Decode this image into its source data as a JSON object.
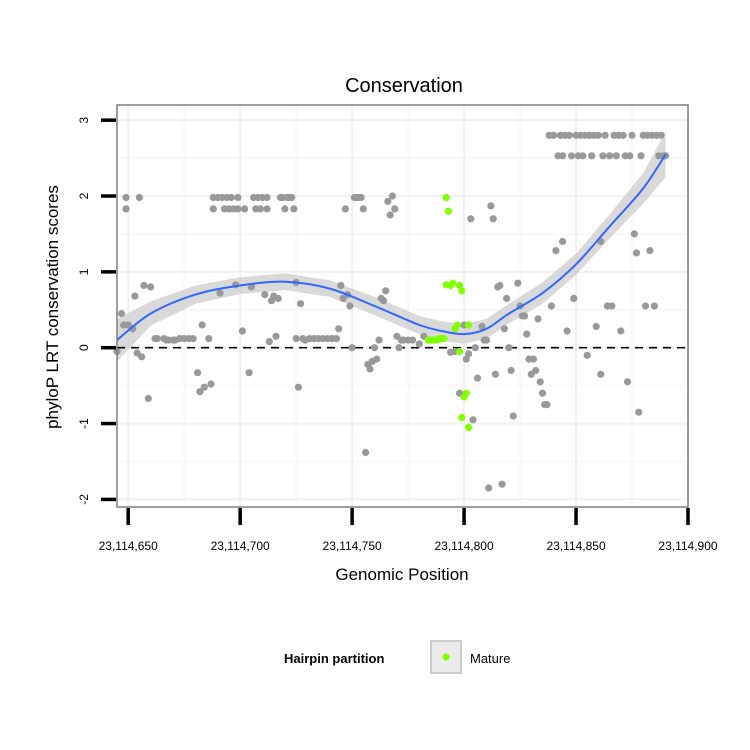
{
  "chart_data": {
    "type": "scatter",
    "title": "Conservation",
    "xlabel": "Genomic Position",
    "ylabel": "phyloP LRT conservation scores",
    "xlim": [
      23114645,
      23114900
    ],
    "ylim": [
      -2.1,
      3.2
    ],
    "x_ticks": [
      {
        "value": 23114650,
        "label": "23,114,650"
      },
      {
        "value": 23114700,
        "label": "23,114,700"
      },
      {
        "value": 23114750,
        "label": "23,114,750"
      },
      {
        "value": 23114800,
        "label": "23,114,800"
      },
      {
        "value": 23114850,
        "label": "23,114,850"
      },
      {
        "value": 23114900,
        "label": "23,114,900"
      }
    ],
    "y_ticks": [
      {
        "value": -2,
        "label": "-2"
      },
      {
        "value": -1,
        "label": "-1"
      },
      {
        "value": 0,
        "label": "0"
      },
      {
        "value": 1,
        "label": "1"
      },
      {
        "value": 2,
        "label": "2"
      },
      {
        "value": 3,
        "label": "3"
      }
    ],
    "reference_line": {
      "y": 0,
      "style": "dashed"
    },
    "legend": {
      "title": "Hairpin partition",
      "position": "bottom",
      "entries": [
        {
          "label": "Mature",
          "color": "#7fff00"
        }
      ]
    },
    "colors": {
      "other": "#999999",
      "mature": "#7fff00",
      "smooth": "#3366ff",
      "ribbon": "#cccccc",
      "panel_border": "#7f7f7f"
    },
    "series": [
      {
        "name": "Other",
        "points": [
          [
            23114645,
            -0.05
          ],
          [
            23114647,
            0.45
          ],
          [
            23114648,
            0.3
          ],
          [
            23114649,
            1.83
          ],
          [
            23114649,
            1.98
          ],
          [
            23114650,
            0.3
          ],
          [
            23114652,
            0.25
          ],
          [
            23114653,
            0.68
          ],
          [
            23114654,
            -0.07
          ],
          [
            23114655,
            1.98
          ],
          [
            23114656,
            -0.12
          ],
          [
            23114657,
            0.82
          ],
          [
            23114659,
            -0.67
          ],
          [
            23114660,
            0.8
          ],
          [
            23114662,
            0.12
          ],
          [
            23114663,
            0.12
          ],
          [
            23114666,
            0.12
          ],
          [
            23114667,
            0.1
          ],
          [
            23114668,
            0.1
          ],
          [
            23114670,
            0.1
          ],
          [
            23114671,
            0.1
          ],
          [
            23114673,
            0.12
          ],
          [
            23114675,
            0.12
          ],
          [
            23114677,
            0.12
          ],
          [
            23114679,
            0.12
          ],
          [
            23114681,
            -0.33
          ],
          [
            23114682,
            -0.58
          ],
          [
            23114683,
            0.3
          ],
          [
            23114684,
            -0.52
          ],
          [
            23114686,
            0.12
          ],
          [
            23114687,
            -0.48
          ],
          [
            23114688,
            1.98
          ],
          [
            23114688,
            1.83
          ],
          [
            23114690,
            1.98
          ],
          [
            23114691,
            0.72
          ],
          [
            23114692,
            1.98
          ],
          [
            23114693,
            1.83
          ],
          [
            23114694,
            1.98
          ],
          [
            23114695,
            1.83
          ],
          [
            23114696,
            1.98
          ],
          [
            23114697,
            1.83
          ],
          [
            23114698,
            0.83
          ],
          [
            23114699,
            1.98
          ],
          [
            23114699,
            1.83
          ],
          [
            23114701,
            0.22
          ],
          [
            23114702,
            1.83
          ],
          [
            23114704,
            -0.33
          ],
          [
            23114705,
            0.8
          ],
          [
            23114706,
            1.98
          ],
          [
            23114707,
            1.83
          ],
          [
            23114708,
            1.98
          ],
          [
            23114709,
            1.83
          ],
          [
            23114710,
            1.98
          ],
          [
            23114711,
            0.7
          ],
          [
            23114712,
            1.98
          ],
          [
            23114712,
            1.83
          ],
          [
            23114713,
            0.08
          ],
          [
            23114714,
            0.62
          ],
          [
            23114715,
            0.68
          ],
          [
            23114716,
            0.15
          ],
          [
            23114717,
            0.65
          ],
          [
            23114718,
            1.98
          ],
          [
            23114719,
            1.98
          ],
          [
            23114720,
            1.83
          ],
          [
            23114721,
            1.98
          ],
          [
            23114722,
            1.98
          ],
          [
            23114723,
            1.98
          ],
          [
            23114724,
            1.83
          ],
          [
            23114725,
            0.12
          ],
          [
            23114725,
            0.86
          ],
          [
            23114726,
            -0.52
          ],
          [
            23114727,
            0.58
          ],
          [
            23114728,
            0.12
          ],
          [
            23114729,
            0.1
          ],
          [
            23114731,
            0.12
          ],
          [
            23114733,
            0.12
          ],
          [
            23114735,
            0.12
          ],
          [
            23114737,
            0.12
          ],
          [
            23114739,
            0.12
          ],
          [
            23114741,
            0.12
          ],
          [
            23114743,
            0.12
          ],
          [
            23114744,
            0.25
          ],
          [
            23114745,
            0.82
          ],
          [
            23114746,
            0.65
          ],
          [
            23114747,
            1.83
          ],
          [
            23114748,
            0.7
          ],
          [
            23114749,
            0.55
          ],
          [
            23114750,
            0.0
          ],
          [
            23114751,
            1.98
          ],
          [
            23114752,
            1.98
          ],
          [
            23114753,
            1.98
          ],
          [
            23114754,
            1.98
          ],
          [
            23114755,
            1.83
          ],
          [
            23114756,
            -1.38
          ],
          [
            23114757,
            -0.22
          ],
          [
            23114758,
            -0.28
          ],
          [
            23114759,
            -0.18
          ],
          [
            23114760,
            0.0
          ],
          [
            23114761,
            -0.15
          ],
          [
            23114762,
            0.1
          ],
          [
            23114763,
            0.65
          ],
          [
            23114764,
            0.62
          ],
          [
            23114765,
            0.75
          ],
          [
            23114766,
            1.93
          ],
          [
            23114767,
            1.75
          ],
          [
            23114768,
            2.0
          ],
          [
            23114769,
            1.83
          ],
          [
            23114770,
            0.15
          ],
          [
            23114771,
            0.0
          ],
          [
            23114772,
            0.1
          ],
          [
            23114773,
            0.1
          ],
          [
            23114775,
            0.1
          ],
          [
            23114777,
            0.1
          ],
          [
            23114780,
            0.05
          ],
          [
            23114782,
            0.15
          ],
          [
            23114794,
            -0.06
          ],
          [
            23114796,
            -0.05
          ],
          [
            23114798,
            -0.6
          ],
          [
            23114800,
            0.3
          ],
          [
            23114801,
            -0.15
          ],
          [
            23114802,
            -0.08
          ],
          [
            23114803,
            1.7
          ],
          [
            23114804,
            -0.95
          ],
          [
            23114805,
            0.0
          ],
          [
            23114806,
            -0.4
          ],
          [
            23114808,
            0.28
          ],
          [
            23114809,
            0.1
          ],
          [
            23114810,
            0.1
          ],
          [
            23114811,
            -1.85
          ],
          [
            23114812,
            1.87
          ],
          [
            23114813,
            1.7
          ],
          [
            23114814,
            -0.35
          ],
          [
            23114815,
            0.8
          ],
          [
            23114816,
            0.82
          ],
          [
            23114817,
            -1.8
          ],
          [
            23114818,
            0.25
          ],
          [
            23114819,
            0.65
          ],
          [
            23114820,
            0.0
          ],
          [
            23114821,
            -0.3
          ],
          [
            23114822,
            -0.9
          ],
          [
            23114824,
            0.85
          ],
          [
            23114825,
            0.55
          ],
          [
            23114826,
            0.42
          ],
          [
            23114827,
            0.42
          ],
          [
            23114828,
            0.18
          ],
          [
            23114829,
            -0.15
          ],
          [
            23114830,
            -0.35
          ],
          [
            23114831,
            -0.15
          ],
          [
            23114832,
            -0.3
          ],
          [
            23114833,
            0.38
          ],
          [
            23114834,
            -0.45
          ],
          [
            23114835,
            -0.6
          ],
          [
            23114836,
            -0.75
          ],
          [
            23114837,
            -0.75
          ],
          [
            23114838,
            2.8
          ],
          [
            23114839,
            0.55
          ],
          [
            23114840,
            2.8
          ],
          [
            23114841,
            1.28
          ],
          [
            23114842,
            2.53
          ],
          [
            23114843,
            2.8
          ],
          [
            23114844,
            1.4
          ],
          [
            23114844,
            2.53
          ],
          [
            23114845,
            2.8
          ],
          [
            23114846,
            0.22
          ],
          [
            23114847,
            2.8
          ],
          [
            23114848,
            2.53
          ],
          [
            23114849,
            0.65
          ],
          [
            23114850,
            2.8
          ],
          [
            23114851,
            2.53
          ],
          [
            23114852,
            2.8
          ],
          [
            23114853,
            2.53
          ],
          [
            23114854,
            2.8
          ],
          [
            23114855,
            -0.1
          ],
          [
            23114856,
            2.8
          ],
          [
            23114857,
            2.53
          ],
          [
            23114858,
            2.8
          ],
          [
            23114859,
            0.28
          ],
          [
            23114860,
            2.8
          ],
          [
            23114861,
            -0.35
          ],
          [
            23114861,
            1.4
          ],
          [
            23114862,
            2.53
          ],
          [
            23114863,
            2.8
          ],
          [
            23114864,
            0.55
          ],
          [
            23114865,
            2.53
          ],
          [
            23114866,
            0.55
          ],
          [
            23114867,
            2.8
          ],
          [
            23114868,
            2.53
          ],
          [
            23114869,
            2.8
          ],
          [
            23114870,
            0.22
          ],
          [
            23114871,
            2.8
          ],
          [
            23114872,
            2.53
          ],
          [
            23114873,
            -0.45
          ],
          [
            23114874,
            2.53
          ],
          [
            23114875,
            2.8
          ],
          [
            23114876,
            1.5
          ],
          [
            23114877,
            1.25
          ],
          [
            23114878,
            -0.85
          ],
          [
            23114879,
            2.53
          ],
          [
            23114880,
            2.8
          ],
          [
            23114881,
            0.55
          ],
          [
            23114882,
            2.8
          ],
          [
            23114883,
            1.28
          ],
          [
            23114884,
            2.8
          ],
          [
            23114885,
            0.55
          ],
          [
            23114886,
            2.8
          ],
          [
            23114887,
            2.53
          ],
          [
            23114888,
            2.8
          ],
          [
            23114889,
            2.53
          ],
          [
            23114890,
            2.53
          ]
        ]
      },
      {
        "name": "Mature",
        "points": [
          [
            23114784,
            0.1
          ],
          [
            23114785,
            0.1
          ],
          [
            23114786,
            0.1
          ],
          [
            23114787,
            0.1
          ],
          [
            23114788,
            0.1
          ],
          [
            23114789,
            0.12
          ],
          [
            23114790,
            0.12
          ],
          [
            23114791,
            0.12
          ],
          [
            23114792,
            0.83
          ],
          [
            23114792,
            1.98
          ],
          [
            23114793,
            1.8
          ],
          [
            23114794,
            0.82
          ],
          [
            23114795,
            0.85
          ],
          [
            23114796,
            0.25
          ],
          [
            23114797,
            0.3
          ],
          [
            23114798,
            0.82
          ],
          [
            23114798,
            -0.05
          ],
          [
            23114799,
            0.75
          ],
          [
            23114799,
            -0.92
          ],
          [
            23114800,
            -0.65
          ],
          [
            23114801,
            -0.6
          ],
          [
            23114802,
            -1.05
          ],
          [
            23114802,
            0.3
          ]
        ]
      }
    ],
    "smooth": [
      [
        23114645,
        0.1
      ],
      [
        23114660,
        0.45
      ],
      [
        23114680,
        0.7
      ],
      [
        23114700,
        0.82
      ],
      [
        23114720,
        0.87
      ],
      [
        23114740,
        0.78
      ],
      [
        23114760,
        0.55
      ],
      [
        23114780,
        0.3
      ],
      [
        23114790,
        0.22
      ],
      [
        23114800,
        0.18
      ],
      [
        23114810,
        0.25
      ],
      [
        23114820,
        0.45
      ],
      [
        23114835,
        0.72
      ],
      [
        23114850,
        1.1
      ],
      [
        23114865,
        1.6
      ],
      [
        23114880,
        2.1
      ],
      [
        23114890,
        2.55
      ]
    ],
    "ribbon_halfwidth": [
      0.28,
      0.16,
      0.12,
      0.11,
      0.11,
      0.11,
      0.12,
      0.12,
      0.13,
      0.13,
      0.13,
      0.13,
      0.14,
      0.14,
      0.16,
      0.2,
      0.3
    ]
  }
}
